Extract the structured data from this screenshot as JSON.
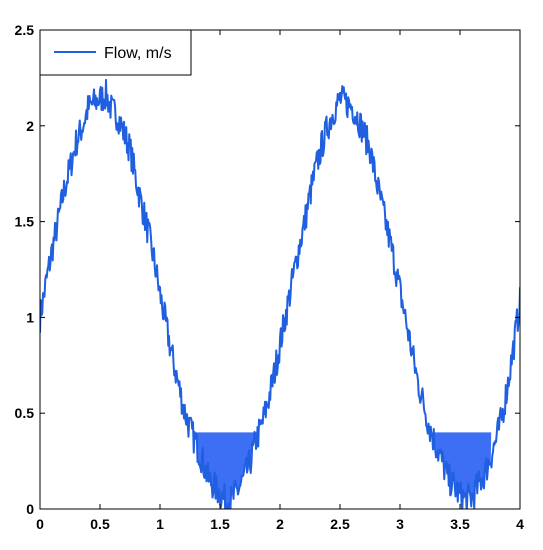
{
  "chart_data": {
    "type": "line",
    "xlim": [
      0,
      4
    ],
    "ylim": [
      0,
      2.5
    ],
    "x_ticks": [
      0,
      0.5,
      1,
      1.5,
      2,
      2.5,
      3,
      3.5,
      4
    ],
    "x_tick_labels": [
      "0",
      "0.5",
      "1",
      "1.5",
      "2",
      "2.5",
      "3",
      "3.5",
      "4"
    ],
    "y_ticks": [
      0,
      0.5,
      1,
      1.5,
      2,
      2.5
    ],
    "y_tick_labels": [
      "0",
      "0.5",
      "1",
      "1.5",
      "2",
      "2.5"
    ],
    "grid": false,
    "legend": {
      "position": "top-left",
      "entries": [
        "Flow, m/s"
      ]
    },
    "series": [
      {
        "name": "Flow, m/s",
        "color": "#1f5fe0",
        "x": [
          0.0,
          0.05,
          0.1,
          0.15,
          0.2,
          0.25,
          0.3,
          0.35,
          0.4,
          0.45,
          0.5,
          0.55,
          0.6,
          0.65,
          0.7,
          0.75,
          0.8,
          0.85,
          0.9,
          0.95,
          1.0,
          1.05,
          1.1,
          1.15,
          1.2,
          1.25,
          1.3,
          1.35,
          1.4,
          1.45,
          1.5,
          1.55,
          1.6,
          1.65,
          1.7,
          1.75,
          1.8,
          1.85,
          1.9,
          1.95,
          2.0,
          2.05,
          2.1,
          2.15,
          2.2,
          2.25,
          2.3,
          2.35,
          2.4,
          2.45,
          2.5,
          2.55,
          2.6,
          2.65,
          2.7,
          2.75,
          2.8,
          2.85,
          2.9,
          2.95,
          3.0,
          3.05,
          3.1,
          3.15,
          3.2,
          3.25,
          3.3,
          3.35,
          3.4,
          3.45,
          3.5,
          3.55,
          3.6,
          3.65,
          3.7,
          3.75,
          3.8,
          3.85,
          3.9,
          3.95,
          4.0
        ],
        "y": [
          1.0,
          1.18,
          1.35,
          1.5,
          1.66,
          1.78,
          1.91,
          1.99,
          2.09,
          2.12,
          2.14,
          2.16,
          2.08,
          2.05,
          1.96,
          1.88,
          1.72,
          1.58,
          1.45,
          1.3,
          1.12,
          0.96,
          0.8,
          0.66,
          0.52,
          0.42,
          0.34,
          0.26,
          0.16,
          0.12,
          0.08,
          0.04,
          0.05,
          0.1,
          0.16,
          0.24,
          0.36,
          0.44,
          0.56,
          0.7,
          0.86,
          1.02,
          1.18,
          1.34,
          1.48,
          1.64,
          1.78,
          1.9,
          2.0,
          2.08,
          2.14,
          2.12,
          2.1,
          2.04,
          1.96,
          1.88,
          1.72,
          1.58,
          1.44,
          1.3,
          1.14,
          0.98,
          0.82,
          0.66,
          0.54,
          0.42,
          0.33,
          0.25,
          0.16,
          0.12,
          0.07,
          0.05,
          0.06,
          0.12,
          0.18,
          0.26,
          0.36,
          0.48,
          0.66,
          0.86,
          1.08
        ]
      }
    ],
    "shaded_regions": [
      {
        "x_start": 1.28,
        "x_end": 1.86,
        "y_top": 0.4,
        "color": "#3d6ff5"
      },
      {
        "x_start": 3.26,
        "x_end": 3.76,
        "y_top": 0.4,
        "color": "#3d6ff5"
      }
    ]
  }
}
